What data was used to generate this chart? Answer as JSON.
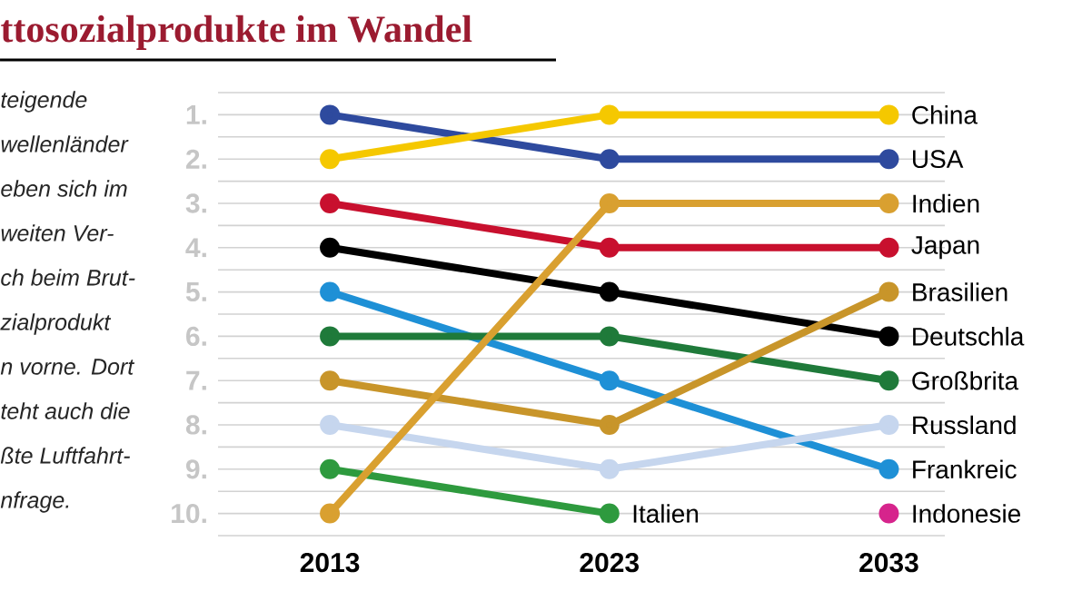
{
  "chart_data": {
    "type": "line",
    "title": "ttosozialprodukte im Wandel",
    "annotations": [
      "teigende",
      "wellenländer",
      "eben sich im",
      "weiten Ver-",
      "ch beim Brut-",
      "zialprodukt",
      "n vorne. Dort",
      "teht auch die",
      "ßte Luftfahrt-",
      "nfrage."
    ],
    "categories": [
      "2013",
      "2023",
      "2033"
    ],
    "ylim": [
      10.5,
      0.5
    ],
    "yticks": [
      {
        "value": 0.5,
        "label": null
      },
      {
        "value": 1,
        "label": "1."
      },
      {
        "value": 1.5,
        "label": null
      },
      {
        "value": 2,
        "label": "2."
      },
      {
        "value": 2.5,
        "label": null
      },
      {
        "value": 3,
        "label": "3."
      },
      {
        "value": 3.5,
        "label": null
      },
      {
        "value": 4,
        "label": "4."
      },
      {
        "value": 4.5,
        "label": null
      },
      {
        "value": 5,
        "label": "5."
      },
      {
        "value": 5.5,
        "label": null
      },
      {
        "value": 6,
        "label": "6."
      },
      {
        "value": 6.5,
        "label": null
      },
      {
        "value": 7,
        "label": "7."
      },
      {
        "value": 7.5,
        "label": null
      },
      {
        "value": 8,
        "label": "8."
      },
      {
        "value": 8.5,
        "label": null
      },
      {
        "value": 9,
        "label": "9."
      },
      {
        "value": 9.5,
        "label": null
      },
      {
        "value": 10,
        "label": "10."
      },
      {
        "value": 10.5,
        "label": null
      }
    ],
    "grid": "y",
    "marker": "circle",
    "line_style": "solid",
    "series": [
      {
        "name": "USA",
        "color": "#2e4a9e",
        "values": [
          1,
          2,
          2
        ]
      },
      {
        "name": "China",
        "color": "#f5c800",
        "values": [
          2,
          1,
          1
        ]
      },
      {
        "name": "Japan",
        "color": "#c8102e",
        "values": [
          3,
          4,
          4
        ]
      },
      {
        "name": "Deutschla",
        "color": "#000000",
        "values": [
          4,
          5,
          6
        ]
      },
      {
        "name": "Frankreic",
        "color": "#1e90d6",
        "values": [
          5,
          7,
          9
        ]
      },
      {
        "name": "Großbrita",
        "color": "#1f7a3a",
        "values": [
          6,
          6,
          7
        ]
      },
      {
        "name": "Brasilien",
        "color": "#c8952a",
        "values": [
          7,
          8,
          5
        ]
      },
      {
        "name": "Russland",
        "color": "#c6d6ee",
        "values": [
          8,
          9,
          8
        ]
      },
      {
        "name": "Italien",
        "color": "#2e9a3e",
        "values": [
          9,
          10,
          null
        ]
      },
      {
        "name": "Indien",
        "color": "#d9a030",
        "values": [
          10,
          3,
          3
        ]
      },
      {
        "name": "Indonesie",
        "color": "#d6248c",
        "values": [
          null,
          null,
          10
        ]
      }
    ]
  }
}
